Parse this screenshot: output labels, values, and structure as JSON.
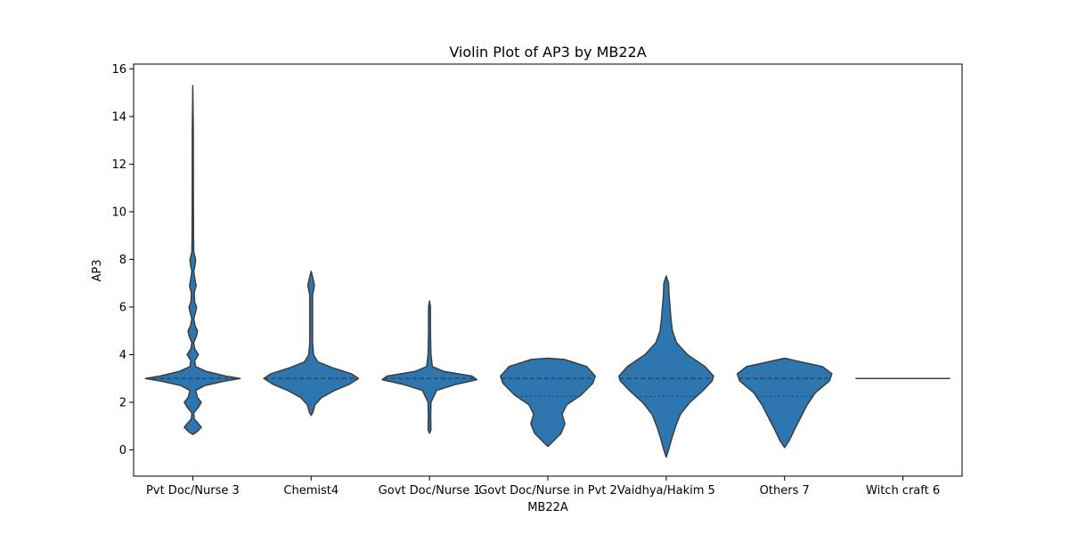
{
  "chart_data": {
    "type": "violin",
    "title": "Violin Plot of AP3 by MB22A",
    "xlabel": "MB22A",
    "ylabel": "AP3",
    "ylim": [
      -1.1,
      16.2
    ],
    "yticks": [
      0,
      2,
      4,
      6,
      8,
      10,
      12,
      14,
      16
    ],
    "grid": false,
    "legend": "none",
    "colors": {
      "fill": "#2e76b0",
      "edge": "#3d3d3d",
      "axis": "#000000"
    },
    "categories": [
      "Pvt Doc/Nurse 3",
      "Chemist4",
      "Govt Doc/Nurse 1",
      "Govt Doc/Nurse in Pvt 2",
      "Vaidhya/Hakim 5",
      "Others 7",
      "Witch craft 6"
    ],
    "violins": [
      {
        "category": "Pvt Doc/Nurse 3",
        "median": 3,
        "q1": 3,
        "q3": 3,
        "profile": [
          [
            0.65,
            0
          ],
          [
            0.75,
            0.08
          ],
          [
            0.95,
            0.18
          ],
          [
            1.1,
            0.12
          ],
          [
            1.3,
            0.03
          ],
          [
            1.55,
            0.02
          ],
          [
            1.8,
            0.12
          ],
          [
            2.0,
            0.18
          ],
          [
            2.2,
            0.1
          ],
          [
            2.5,
            0.06
          ],
          [
            2.7,
            0.25
          ],
          [
            2.9,
            0.7
          ],
          [
            3.0,
            1.0
          ],
          [
            3.1,
            0.7
          ],
          [
            3.3,
            0.28
          ],
          [
            3.5,
            0.06
          ],
          [
            3.75,
            0.04
          ],
          [
            4.0,
            0.12
          ],
          [
            4.25,
            0.04
          ],
          [
            4.5,
            0.02
          ],
          [
            4.8,
            0.08
          ],
          [
            5.0,
            0.1
          ],
          [
            5.2,
            0.05
          ],
          [
            5.5,
            0.02
          ],
          [
            5.8,
            0.06
          ],
          [
            6.0,
            0.08
          ],
          [
            6.2,
            0.04
          ],
          [
            6.6,
            0.03
          ],
          [
            6.9,
            0.07
          ],
          [
            7.1,
            0.05
          ],
          [
            7.5,
            0.02
          ],
          [
            7.8,
            0.05
          ],
          [
            8.0,
            0.06
          ],
          [
            8.3,
            0.02
          ],
          [
            9.0,
            0.015
          ],
          [
            11.0,
            0.012
          ],
          [
            13.5,
            0.01
          ],
          [
            15.3,
            0
          ]
        ]
      },
      {
        "category": "Chemist4",
        "median": 3,
        "q1": 3,
        "q3": 3,
        "profile": [
          [
            1.45,
            0
          ],
          [
            1.6,
            0.04
          ],
          [
            1.9,
            0.08
          ],
          [
            2.2,
            0.22
          ],
          [
            2.5,
            0.5
          ],
          [
            2.75,
            0.8
          ],
          [
            3.0,
            1.0
          ],
          [
            3.2,
            0.85
          ],
          [
            3.45,
            0.45
          ],
          [
            3.7,
            0.14
          ],
          [
            4.0,
            0.05
          ],
          [
            4.5,
            0.03
          ],
          [
            5.5,
            0.03
          ],
          [
            6.5,
            0.03
          ],
          [
            6.9,
            0.07
          ],
          [
            7.1,
            0.05
          ],
          [
            7.5,
            0
          ]
        ]
      },
      {
        "category": "Govt Doc/Nurse 1",
        "median": 3,
        "q1": 3,
        "q3": 3,
        "profile": [
          [
            0.7,
            0
          ],
          [
            0.85,
            0.03
          ],
          [
            1.4,
            0.025
          ],
          [
            2.0,
            0.03
          ],
          [
            2.5,
            0.15
          ],
          [
            2.75,
            0.55
          ],
          [
            2.95,
            1.0
          ],
          [
            3.1,
            0.9
          ],
          [
            3.3,
            0.3
          ],
          [
            3.5,
            0.06
          ],
          [
            4.0,
            0.03
          ],
          [
            5.0,
            0.02
          ],
          [
            6.0,
            0.02
          ],
          [
            6.25,
            0
          ]
        ]
      },
      {
        "category": "Govt Doc/Nurse in Pvt 2",
        "median": 3,
        "q1": 2.25,
        "q3": 3,
        "profile": [
          [
            0.15,
            0
          ],
          [
            0.3,
            0.08
          ],
          [
            0.7,
            0.28
          ],
          [
            1.1,
            0.36
          ],
          [
            1.5,
            0.3
          ],
          [
            1.9,
            0.4
          ],
          [
            2.3,
            0.7
          ],
          [
            2.8,
            0.95
          ],
          [
            3.1,
            1.0
          ],
          [
            3.5,
            0.82
          ],
          [
            3.8,
            0.35
          ],
          [
            3.85,
            0
          ]
        ]
      },
      {
        "category": "Vaidhya/Hakim 5",
        "median": 3,
        "q1": 2.25,
        "q3": 3,
        "profile": [
          [
            -0.3,
            0
          ],
          [
            0.0,
            0.05
          ],
          [
            0.5,
            0.12
          ],
          [
            1.0,
            0.2
          ],
          [
            1.5,
            0.3
          ],
          [
            2.0,
            0.5
          ],
          [
            2.5,
            0.78
          ],
          [
            2.9,
            0.97
          ],
          [
            3.1,
            1.0
          ],
          [
            3.5,
            0.82
          ],
          [
            4.0,
            0.45
          ],
          [
            4.5,
            0.22
          ],
          [
            5.0,
            0.13
          ],
          [
            5.5,
            0.1
          ],
          [
            6.0,
            0.08
          ],
          [
            6.5,
            0.06
          ],
          [
            7.0,
            0.05
          ],
          [
            7.3,
            0
          ]
        ]
      },
      {
        "category": "Others 7",
        "median": 3,
        "q1": 2.25,
        "q3": 3,
        "profile": [
          [
            0.1,
            0
          ],
          [
            0.4,
            0.1
          ],
          [
            0.9,
            0.22
          ],
          [
            1.4,
            0.35
          ],
          [
            1.9,
            0.48
          ],
          [
            2.4,
            0.65
          ],
          [
            2.9,
            0.95
          ],
          [
            3.2,
            1.0
          ],
          [
            3.5,
            0.8
          ],
          [
            3.85,
            0
          ]
        ]
      },
      {
        "category": "Witch craft 6",
        "median": 3,
        "q1": 3,
        "q3": 3,
        "profile": []
      }
    ]
  }
}
